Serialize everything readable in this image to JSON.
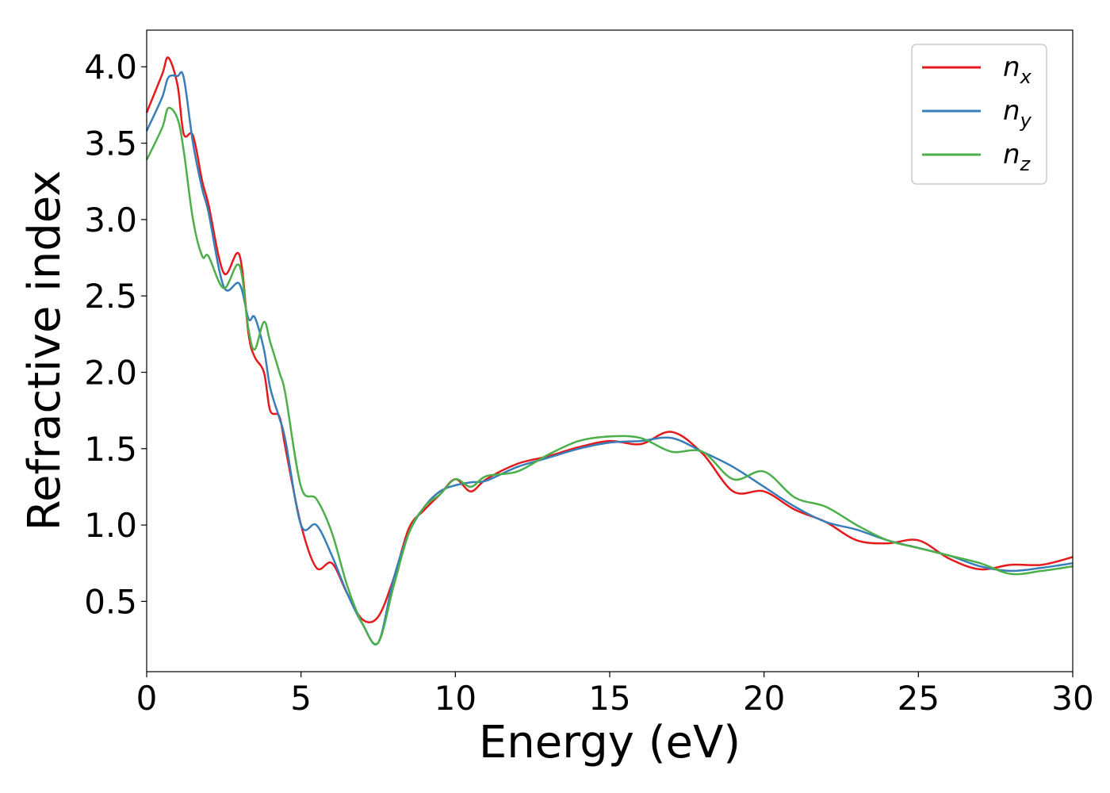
{
  "chart_data": {
    "type": "line",
    "xlabel": "Energy (eV)",
    "ylabel": "Refractive index",
    "xlim": [
      0,
      30
    ],
    "ylim": [
      0.04,
      4.24
    ],
    "xticks": [
      "0",
      "5",
      "10",
      "15",
      "20",
      "25",
      "30"
    ],
    "yticks": [
      "0.5",
      "1.0",
      "1.5",
      "2.0",
      "2.5",
      "3.0",
      "3.5",
      "4.0"
    ],
    "grid": false,
    "legend_position": "top-right",
    "x": [
      0,
      0.5,
      0.7,
      1.0,
      1.2,
      1.5,
      1.8,
      2.0,
      2.5,
      3.0,
      3.3,
      3.5,
      3.8,
      4.0,
      4.3,
      4.5,
      5.0,
      5.5,
      6.0,
      6.5,
      7.0,
      7.5,
      8.0,
      8.5,
      9.0,
      9.5,
      10.0,
      10.5,
      11.0,
      12.0,
      13.0,
      14.0,
      15.0,
      16.0,
      17.0,
      18.0,
      19.0,
      20.0,
      21.0,
      22.0,
      23.0,
      24.0,
      25.0,
      26.0,
      27.0,
      28.0,
      29.0,
      30.0
    ],
    "series": [
      {
        "name": "n",
        "subscript": "x",
        "color": "#e41a1c",
        "values": [
          3.7,
          3.95,
          4.06,
          3.88,
          3.56,
          3.55,
          3.25,
          3.1,
          2.65,
          2.77,
          2.25,
          2.1,
          2.0,
          1.75,
          1.71,
          1.5,
          1.0,
          0.72,
          0.75,
          0.55,
          0.38,
          0.4,
          0.65,
          0.98,
          1.1,
          1.2,
          1.3,
          1.22,
          1.3,
          1.4,
          1.45,
          1.51,
          1.55,
          1.53,
          1.61,
          1.47,
          1.22,
          1.22,
          1.1,
          1.02,
          0.9,
          0.88,
          0.9,
          0.78,
          0.71,
          0.74,
          0.74,
          0.79
        ]
      },
      {
        "name": "n",
        "subscript": "y",
        "color": "#377eb8",
        "values": [
          3.58,
          3.8,
          3.93,
          3.94,
          3.93,
          3.5,
          3.2,
          3.05,
          2.56,
          2.58,
          2.35,
          2.36,
          2.15,
          1.9,
          1.7,
          1.55,
          1.0,
          1.0,
          0.8,
          0.55,
          0.35,
          0.23,
          0.65,
          0.95,
          1.12,
          1.22,
          1.26,
          1.28,
          1.29,
          1.38,
          1.44,
          1.5,
          1.54,
          1.55,
          1.57,
          1.48,
          1.38,
          1.25,
          1.12,
          1.02,
          0.97,
          0.9,
          0.85,
          0.8,
          0.73,
          0.7,
          0.72,
          0.75
        ]
      },
      {
        "name": "n",
        "subscript": "z",
        "color": "#4daf4a",
        "values": [
          3.39,
          3.6,
          3.73,
          3.66,
          3.45,
          3.0,
          2.76,
          2.76,
          2.55,
          2.7,
          2.28,
          2.15,
          2.33,
          2.2,
          2.0,
          1.85,
          1.25,
          1.17,
          0.95,
          0.6,
          0.35,
          0.23,
          0.6,
          0.95,
          1.12,
          1.2,
          1.3,
          1.25,
          1.32,
          1.35,
          1.46,
          1.55,
          1.58,
          1.57,
          1.48,
          1.48,
          1.3,
          1.35,
          1.18,
          1.12,
          1.0,
          0.9,
          0.85,
          0.8,
          0.75,
          0.68,
          0.7,
          0.73
        ]
      }
    ]
  }
}
